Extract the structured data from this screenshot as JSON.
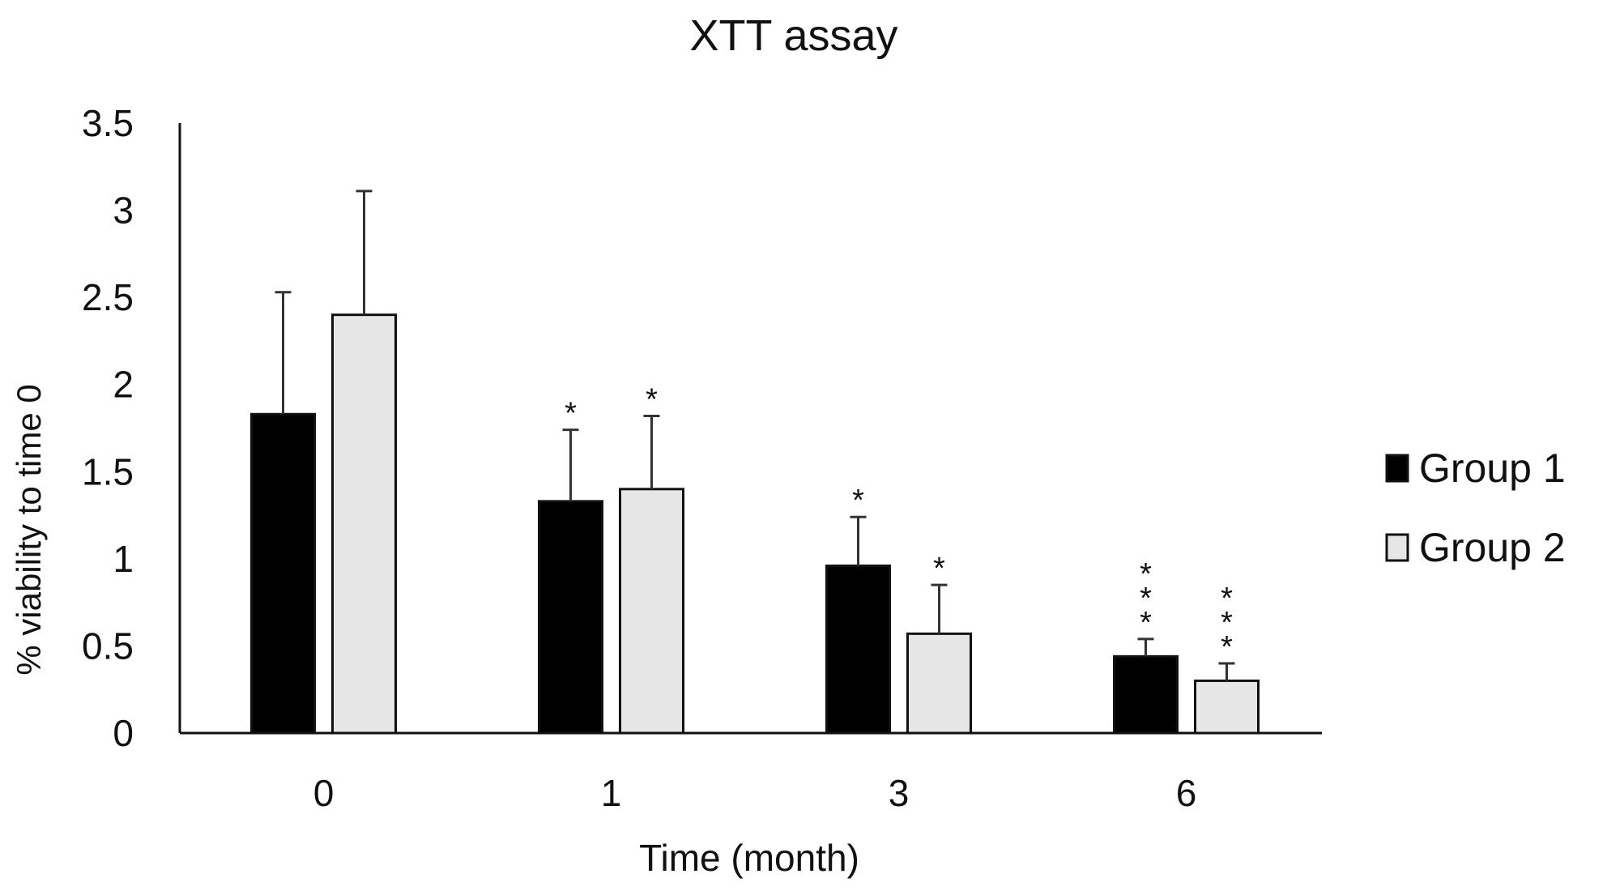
{
  "chart_data": {
    "type": "bar",
    "title": "XTT assay",
    "xlabel": "Time (month)",
    "ylabel": "% viability to time 0",
    "categories": [
      "0",
      "1",
      "3",
      "6"
    ],
    "ylim": [
      0,
      3.5
    ],
    "yticks": [
      "0",
      "0.5",
      "1",
      "1.5",
      "2",
      "2.5",
      "3",
      "3.5"
    ],
    "grid": false,
    "legend_position": "right",
    "series": [
      {
        "name": "Group 1",
        "color": "#000000",
        "values": [
          1.83,
          1.33,
          0.96,
          0.44
        ],
        "errors": [
          0.7,
          0.41,
          0.28,
          0.1
        ],
        "annotations": [
          "",
          "*",
          "*",
          "***"
        ]
      },
      {
        "name": "Group 2",
        "color": "#e6e6e6",
        "values": [
          2.4,
          1.4,
          0.57,
          0.3
        ],
        "errors": [
          0.71,
          0.42,
          0.28,
          0.1
        ],
        "annotations": [
          "",
          "*",
          "*",
          "***"
        ]
      }
    ]
  }
}
